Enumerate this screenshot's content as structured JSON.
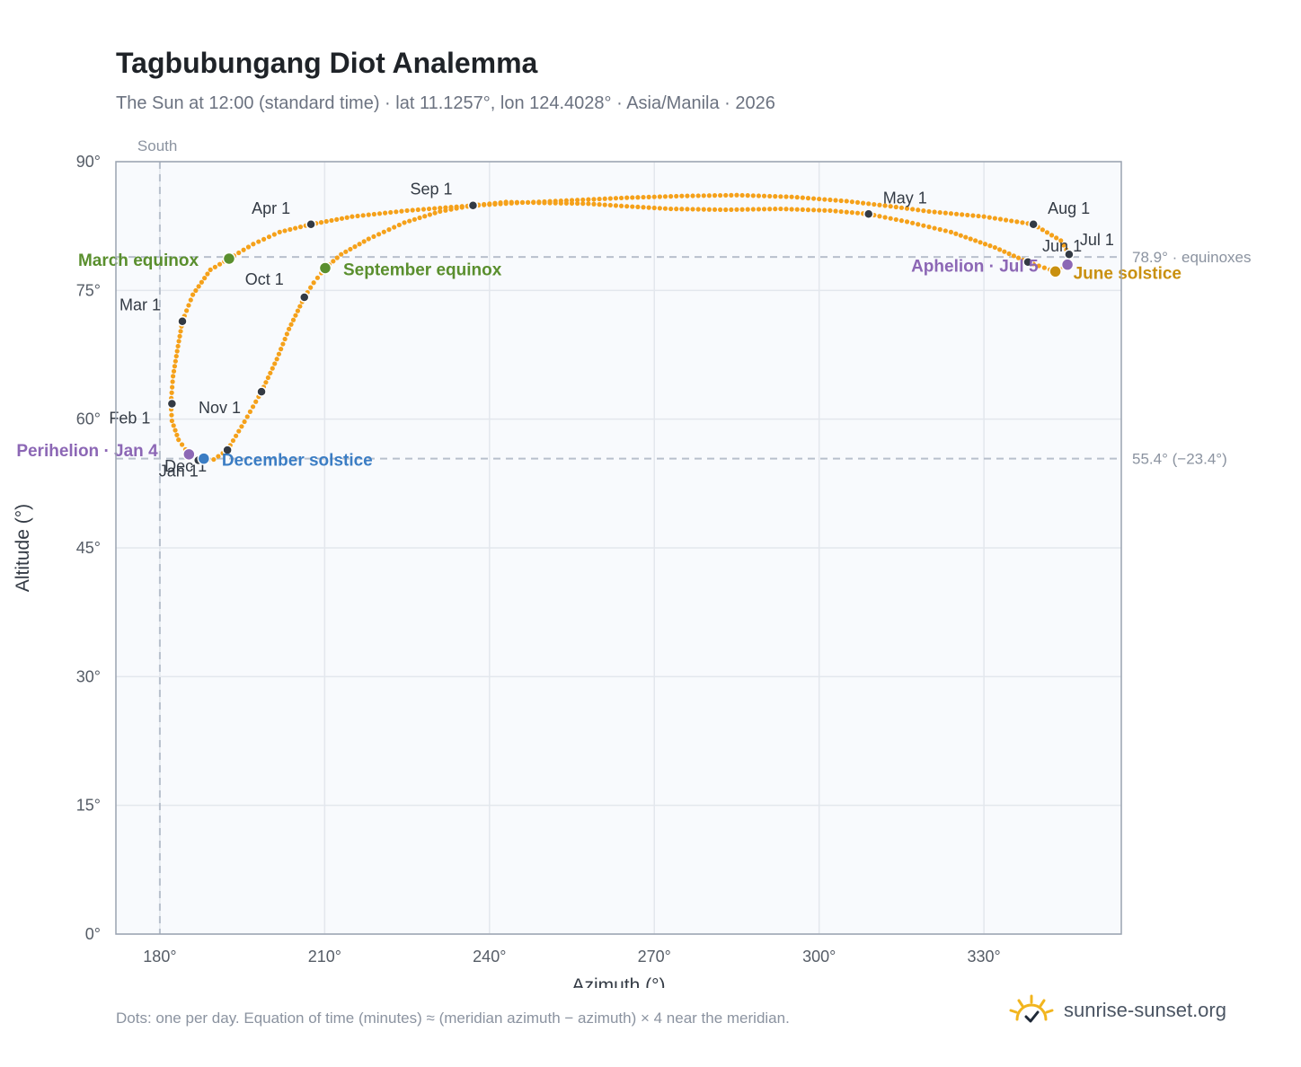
{
  "header": {
    "title": "Tagbubungang Diot Analemma",
    "subtitle": "The Sun at 12:00 (standard time) · lat 11.1257°, lon 124.4028° · Asia/Manila · 2026"
  },
  "footer": {
    "note": "Dots: one per day. Equation of time (minutes) ≈ (meridian azimuth − azimuth) × 4 near the meridian.",
    "brand": "sunrise-sunset.org"
  },
  "colors": {
    "analemma": "#f5a11a",
    "month_marker": "#333a44",
    "equinox": "#5a8f2e",
    "june_solstice": "#c9900f",
    "december_solstice": "#3b7dc4",
    "perihelion_aphelion": "#8c67b5",
    "plot_bg": "#f8fafd",
    "grid": "#e3e7ed",
    "reference_line": "#b8c0cc"
  },
  "chart_data": {
    "type": "scatter",
    "xlabel": "Azimuth (°)",
    "ylabel": "Altitude (°)",
    "xlim": [
      172,
      355
    ],
    "ylim": [
      0,
      90
    ],
    "xticks": [
      180,
      210,
      240,
      270,
      300,
      330
    ],
    "xtick_labels": [
      "180°",
      "210°",
      "240°",
      "270°",
      "300°",
      "330°"
    ],
    "yticks": [
      0,
      15,
      30,
      45,
      60,
      75,
      90
    ],
    "ytick_labels": [
      "0°",
      "15°",
      "30°",
      "45°",
      "60°",
      "75°",
      "90°"
    ],
    "grid": true,
    "meridian": {
      "azimuth": 180,
      "label": "South"
    },
    "reference_lines": [
      {
        "altitude": 78.9,
        "label": "78.9° · equinoxes"
      },
      {
        "altitude": 55.4,
        "label": "55.4° (−23.4°)"
      }
    ],
    "analemma_path": {
      "note_series": "daily positions (azimuth, altitude), Jan 1 → Dec 31",
      "points": [
        [
          187.7,
          55.1
        ],
        [
          185.3,
          55.9
        ],
        [
          183.4,
          57.6
        ],
        [
          182.2,
          59.8
        ],
        [
          182.0,
          61.8
        ],
        [
          182.4,
          65.0
        ],
        [
          183.3,
          68.5
        ],
        [
          184.1,
          71.4
        ],
        [
          186.0,
          74.5
        ],
        [
          189.2,
          77.4
        ],
        [
          192.6,
          78.7
        ],
        [
          197.0,
          80.4
        ],
        [
          201.8,
          81.8
        ],
        [
          207.5,
          82.7
        ],
        [
          215.0,
          83.6
        ],
        [
          225.0,
          84.3
        ],
        [
          235.0,
          84.8
        ],
        [
          245.0,
          85.2
        ],
        [
          255.0,
          85.5
        ],
        [
          265.0,
          85.8
        ],
        [
          275.0,
          86.0
        ],
        [
          285.0,
          86.1
        ],
        [
          295.0,
          85.9
        ],
        [
          305.0,
          85.4
        ],
        [
          313.0,
          84.8
        ],
        [
          320.0,
          84.2
        ],
        [
          330.0,
          83.6
        ],
        [
          339.0,
          82.7
        ],
        [
          344.0,
          80.8
        ],
        [
          345.5,
          79.2
        ],
        [
          345.2,
          78.0
        ],
        [
          343.0,
          77.2
        ],
        [
          338.0,
          78.3
        ],
        [
          332.0,
          80.0
        ],
        [
          324.0,
          81.8
        ],
        [
          316.0,
          83.0
        ],
        [
          309.0,
          83.9
        ],
        [
          302.0,
          84.3
        ],
        [
          293.0,
          84.5
        ],
        [
          283.0,
          84.4
        ],
        [
          273.0,
          84.5
        ],
        [
          265.0,
          84.8
        ],
        [
          258.0,
          85.1
        ],
        [
          250.0,
          85.2
        ],
        [
          243.0,
          85.3
        ],
        [
          237.0,
          84.9
        ],
        [
          231.0,
          84.2
        ],
        [
          224.5,
          82.9
        ],
        [
          218.0,
          81.0
        ],
        [
          213.0,
          79.2
        ],
        [
          210.1,
          77.6
        ],
        [
          208.0,
          75.9
        ],
        [
          206.3,
          74.2
        ],
        [
          203.5,
          70.5
        ],
        [
          201.3,
          67.0
        ],
        [
          198.5,
          63.2
        ],
        [
          195.4,
          59.7
        ],
        [
          192.3,
          56.4
        ],
        [
          189.8,
          55.3
        ],
        [
          187.7,
          55.1
        ]
      ]
    },
    "month_markers": [
      {
        "label": "Jan 1",
        "azimuth": 187.0,
        "altitude": 55.2
      },
      {
        "label": "Feb 1",
        "azimuth": 182.2,
        "altitude": 61.8
      },
      {
        "label": "Mar 1",
        "azimuth": 184.1,
        "altitude": 71.4
      },
      {
        "label": "Apr 1",
        "azimuth": 207.5,
        "altitude": 82.7
      },
      {
        "label": "May 1",
        "azimuth": 309.0,
        "altitude": 83.9
      },
      {
        "label": "Jun 1",
        "azimuth": 338.0,
        "altitude": 78.3
      },
      {
        "label": "Jul 1",
        "azimuth": 345.5,
        "altitude": 79.2
      },
      {
        "label": "Aug 1",
        "azimuth": 339.0,
        "altitude": 82.7
      },
      {
        "label": "Sep 1",
        "azimuth": 237.0,
        "altitude": 84.9
      },
      {
        "label": "Oct 1",
        "azimuth": 206.3,
        "altitude": 74.2
      },
      {
        "label": "Nov 1",
        "azimuth": 198.5,
        "altitude": 63.2
      },
      {
        "label": "Dec 1",
        "azimuth": 192.3,
        "altitude": 56.4
      }
    ],
    "events": [
      {
        "label": "March equinox",
        "azimuth": 192.6,
        "altitude": 78.7,
        "kind": "equinox"
      },
      {
        "label": "September equinox",
        "azimuth": 210.1,
        "altitude": 77.6,
        "kind": "equinox"
      },
      {
        "label": "June solstice",
        "azimuth": 343.0,
        "altitude": 77.2,
        "kind": "june_solstice"
      },
      {
        "label": "December solstice",
        "azimuth": 188.0,
        "altitude": 55.4,
        "kind": "december_solstice"
      },
      {
        "label": "Perihelion · Jan 4",
        "azimuth": 185.3,
        "altitude": 55.9,
        "kind": "perihelion_aphelion"
      },
      {
        "label": "Aphelion · Jul 5",
        "azimuth": 345.2,
        "altitude": 78.0,
        "kind": "perihelion_aphelion"
      }
    ]
  }
}
